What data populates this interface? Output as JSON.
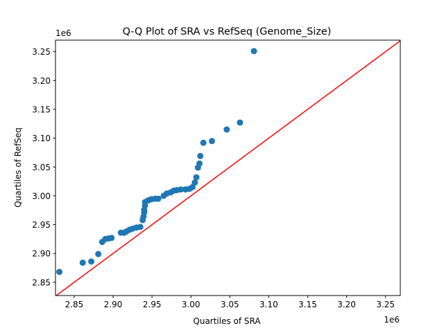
{
  "chart_data": {
    "type": "scatter",
    "title": "Q-Q Plot of SRA vs RefSeq (Genome_Size)",
    "xlabel": "Quartiles of SRA",
    "ylabel": "Quartiles of RefSeq",
    "x_offset_label": "1e6",
    "y_offset_label": "1e6",
    "xlim": [
      2.826,
      3.269
    ],
    "ylim": [
      2.827,
      3.27
    ],
    "xticks": [
      2.85,
      2.9,
      2.95,
      3.0,
      3.05,
      3.1,
      3.15,
      3.2,
      3.25
    ],
    "yticks": [
      2.85,
      2.9,
      2.95,
      3.0,
      3.05,
      3.1,
      3.15,
      3.2,
      3.25
    ],
    "xtick_labels": [
      "2.85",
      "2.90",
      "2.95",
      "3.00",
      "3.05",
      "3.10",
      "3.15",
      "3.20",
      "3.25"
    ],
    "ytick_labels": [
      "2.85",
      "2.90",
      "2.95",
      "3.00",
      "3.05",
      "3.10",
      "3.15",
      "3.20",
      "3.25"
    ],
    "grid": false,
    "point_color": "#1f77b4",
    "reference_line": {
      "type": "y=x",
      "color": "#ff0000"
    },
    "points": [
      [
        2.831,
        2.868
      ],
      [
        2.861,
        2.884
      ],
      [
        2.872,
        2.886
      ],
      [
        2.881,
        2.899
      ],
      [
        2.886,
        2.92
      ],
      [
        2.89,
        2.925
      ],
      [
        2.894,
        2.926
      ],
      [
        2.898,
        2.927
      ],
      [
        2.91,
        2.936
      ],
      [
        2.914,
        2.936
      ],
      [
        2.917,
        2.938
      ],
      [
        2.921,
        2.941
      ],
      [
        2.925,
        2.943
      ],
      [
        2.93,
        2.945
      ],
      [
        2.935,
        2.946
      ],
      [
        2.938,
        2.958
      ],
      [
        2.939,
        2.964
      ],
      [
        2.94,
        2.971
      ],
      [
        2.94,
        2.976
      ],
      [
        2.941,
        2.983
      ],
      [
        2.941,
        2.989
      ],
      [
        2.945,
        2.992
      ],
      [
        2.949,
        2.994
      ],
      [
        2.954,
        2.995
      ],
      [
        2.958,
        2.995
      ],
      [
        2.965,
        3.0
      ],
      [
        2.969,
        3.004
      ],
      [
        2.974,
        3.006
      ],
      [
        2.978,
        3.009
      ],
      [
        2.982,
        3.01
      ],
      [
        2.987,
        3.011
      ],
      [
        2.993,
        3.011
      ],
      [
        2.998,
        3.012
      ],
      [
        3.002,
        3.015
      ],
      [
        3.005,
        3.023
      ],
      [
        3.007,
        3.032
      ],
      [
        3.009,
        3.049
      ],
      [
        3.011,
        3.056
      ],
      [
        3.012,
        3.069
      ],
      [
        3.016,
        3.092
      ],
      [
        3.027,
        3.095
      ],
      [
        3.046,
        3.115
      ],
      [
        3.063,
        3.127
      ],
      [
        3.081,
        3.251
      ]
    ]
  }
}
